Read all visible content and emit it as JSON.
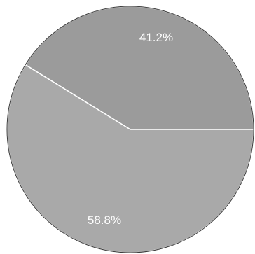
{
  "chart_data": {
    "type": "pie",
    "slices": [
      {
        "value": 41.2,
        "label": "41.2%",
        "color": "#9b9b9b"
      },
      {
        "value": 58.8,
        "label": "58.8%",
        "color": "#a9a9a9"
      }
    ],
    "start_angle_deg": 0,
    "direction": "counterclockwise",
    "separator_color": "#ffffff",
    "outline_color": "#3a3a3a"
  }
}
